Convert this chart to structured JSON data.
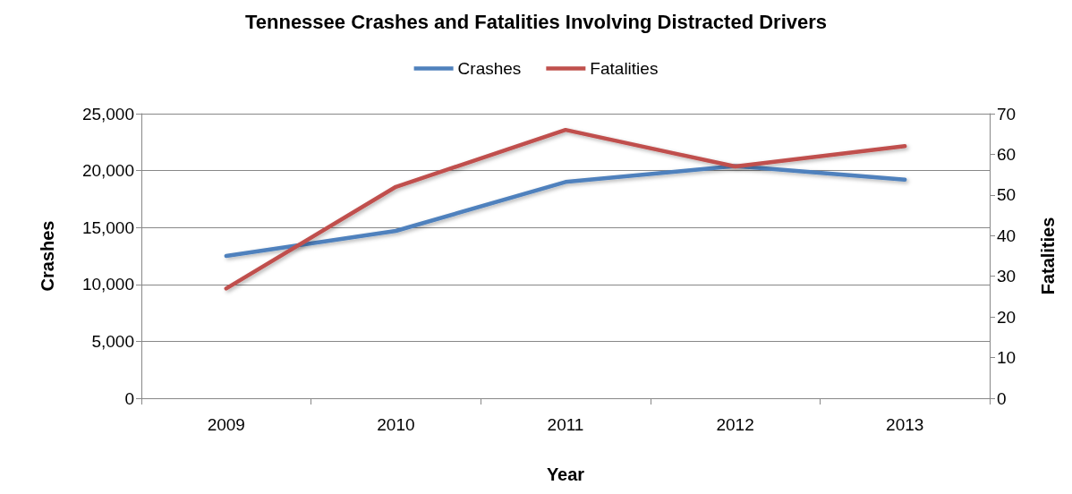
{
  "chart_data": {
    "type": "line",
    "title": "Tennessee Crashes and Fatalities Involving Distracted Drivers",
    "xlabel": "Year",
    "ylabel": "Crashes",
    "y2label": "Fatalities",
    "categories": [
      "2009",
      "2010",
      "2011",
      "2012",
      "2013"
    ],
    "series": [
      {
        "name": "Crashes",
        "color": "#4f81bd",
        "values": [
          12500,
          14700,
          19000,
          20400,
          19200
        ]
      },
      {
        "name": "Fatalities",
        "color": "#c0504d",
        "values": [
          27,
          52,
          66,
          57,
          62
        ],
        "axis": "y2"
      }
    ],
    "ylim": [
      0,
      25000
    ],
    "yticks": [
      {
        "value": 0,
        "label": "0"
      },
      {
        "value": 5000,
        "label": "5,000"
      },
      {
        "value": 10000,
        "label": "10,000"
      },
      {
        "value": 15000,
        "label": "15,000"
      },
      {
        "value": 20000,
        "label": "20,000"
      },
      {
        "value": 25000,
        "label": "25,000"
      }
    ],
    "y2lim": [
      0,
      70
    ],
    "y2ticks": [
      0,
      10,
      20,
      30,
      40,
      50,
      60,
      70
    ],
    "grid": "y",
    "legend": "top",
    "marker": "none",
    "line_style": "solid"
  }
}
